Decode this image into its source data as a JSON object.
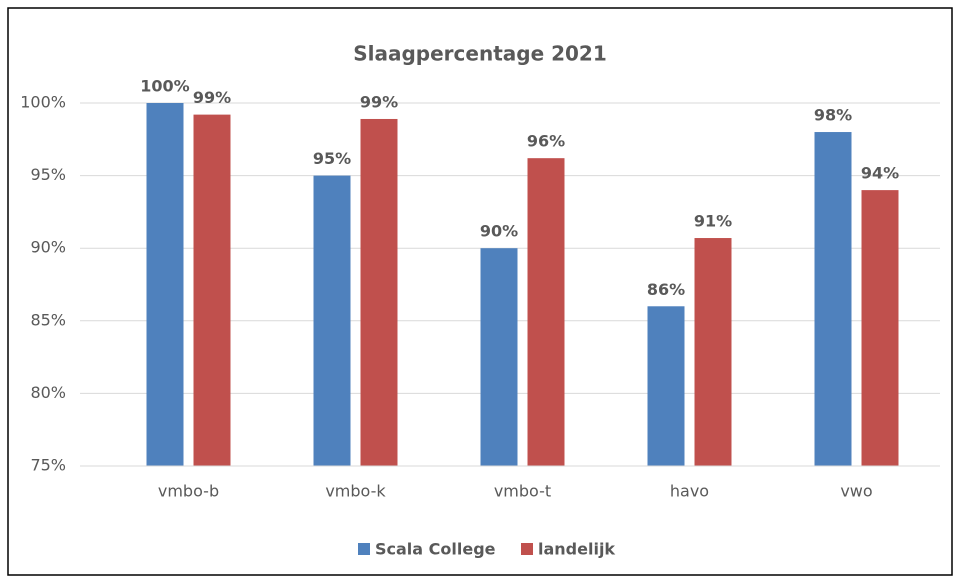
{
  "chart_data": {
    "type": "bar",
    "title": "Slaagpercentage 2021",
    "categories": [
      "vmbo-b",
      "vmbo-k",
      "vmbo-t",
      "havo",
      "vwo"
    ],
    "series": [
      {
        "name": "Scala College",
        "color": "#4f81bd",
        "values": [
          100,
          95,
          90,
          86,
          98
        ],
        "value_labels": [
          "100%",
          "95%",
          "90%",
          "86%",
          "98%"
        ]
      },
      {
        "name": "landelijk",
        "color": "#c0504d",
        "values": [
          99.2,
          98.9,
          96.2,
          90.7,
          94
        ],
        "value_labels": [
          "99%",
          "99%",
          "96%",
          "91%",
          "94%"
        ]
      }
    ],
    "ylim": [
      75,
      100
    ],
    "yticks": [
      {
        "value": 75,
        "label": "75%"
      },
      {
        "value": 80,
        "label": "80%"
      },
      {
        "value": 85,
        "label": "85%"
      },
      {
        "value": 90,
        "label": "90%"
      },
      {
        "value": 95,
        "label": "95%"
      },
      {
        "value": 100,
        "label": "100%"
      }
    ],
    "grid": true,
    "legend": "bottom"
  }
}
